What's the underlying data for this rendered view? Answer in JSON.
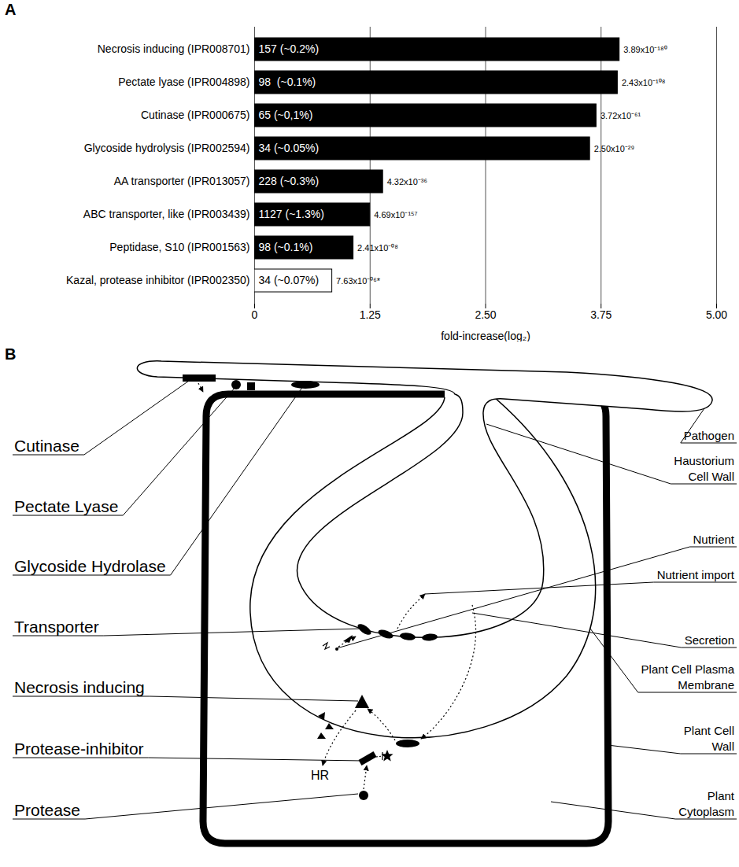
{
  "chart_data": {
    "type": "bar",
    "panel_label": "A",
    "orientation": "horizontal",
    "categories": [
      "Necrosis inducing (IPR008701)",
      "Pectate lyase (IPR004898)",
      "Cutinase (IPR000675)",
      "Glycoside hydrolysis (IPR002594)",
      "AA transporter (IPR013057)",
      "ABC transporter, like (IPR003439)",
      "Peptidase, S10 (IPR001563)",
      "Kazal, protease inhibitor (IPR002350)"
    ],
    "values": [
      3.95,
      3.93,
      3.7,
      3.63,
      1.39,
      1.25,
      1.07,
      0.84
    ],
    "bar_labels": [
      "157 (~0.2%)",
      "98  (~0.1%)",
      "65 (~0,1%)",
      "34 (~0.05%)",
      "228 (~0.3%)",
      "1127 (~1.3%)",
      "98 (~0.1%)",
      "34 (~0.07%)"
    ],
    "p_values": [
      "3.89x10⁻¹⁸⁰",
      "2.43x10⁻¹⁰⁸",
      "3.72x10⁻⁶¹",
      "2.50x10⁻²⁹",
      "4.32x10⁻³⁶",
      "4.69x10⁻¹⁵⁷",
      "2.41x10⁻⁰⁸",
      "7.63x10⁻⁰⁶*"
    ],
    "colors": [
      "#000000",
      "#000000",
      "#000000",
      "#000000",
      "#000000",
      "#000000",
      "#000000",
      "#ffffff"
    ],
    "xlim": [
      0,
      5
    ],
    "xticks": [
      0,
      1.25,
      {
        "value": 2.5,
        "label": "2.50"
      },
      3.75,
      {
        "value": 5,
        "label": "5.00"
      }
    ],
    "x_label": "fold-increase(log₂)",
    "grid": true
  },
  "diagram": {
    "panel_label": "B",
    "left_labels": [
      "Cutinase",
      "Pectate Lyase",
      "Glycoside Hydrolase",
      "Transporter",
      "Necrosis inducing",
      "Protease-inhibitor",
      "Protease"
    ],
    "right_labels": [
      [
        "Pathogen"
      ],
      [
        "Haustorium",
        "Cell Wall"
      ],
      [
        "Nutrient"
      ],
      [
        "Nutrient import"
      ],
      [
        "Secretion"
      ],
      [
        "Plant Cell Plasma",
        "Membrane"
      ],
      [
        "Plant Cell",
        "Wall"
      ],
      [
        "Plant",
        "Cytoplasm"
      ]
    ],
    "hr_label": "HR"
  }
}
